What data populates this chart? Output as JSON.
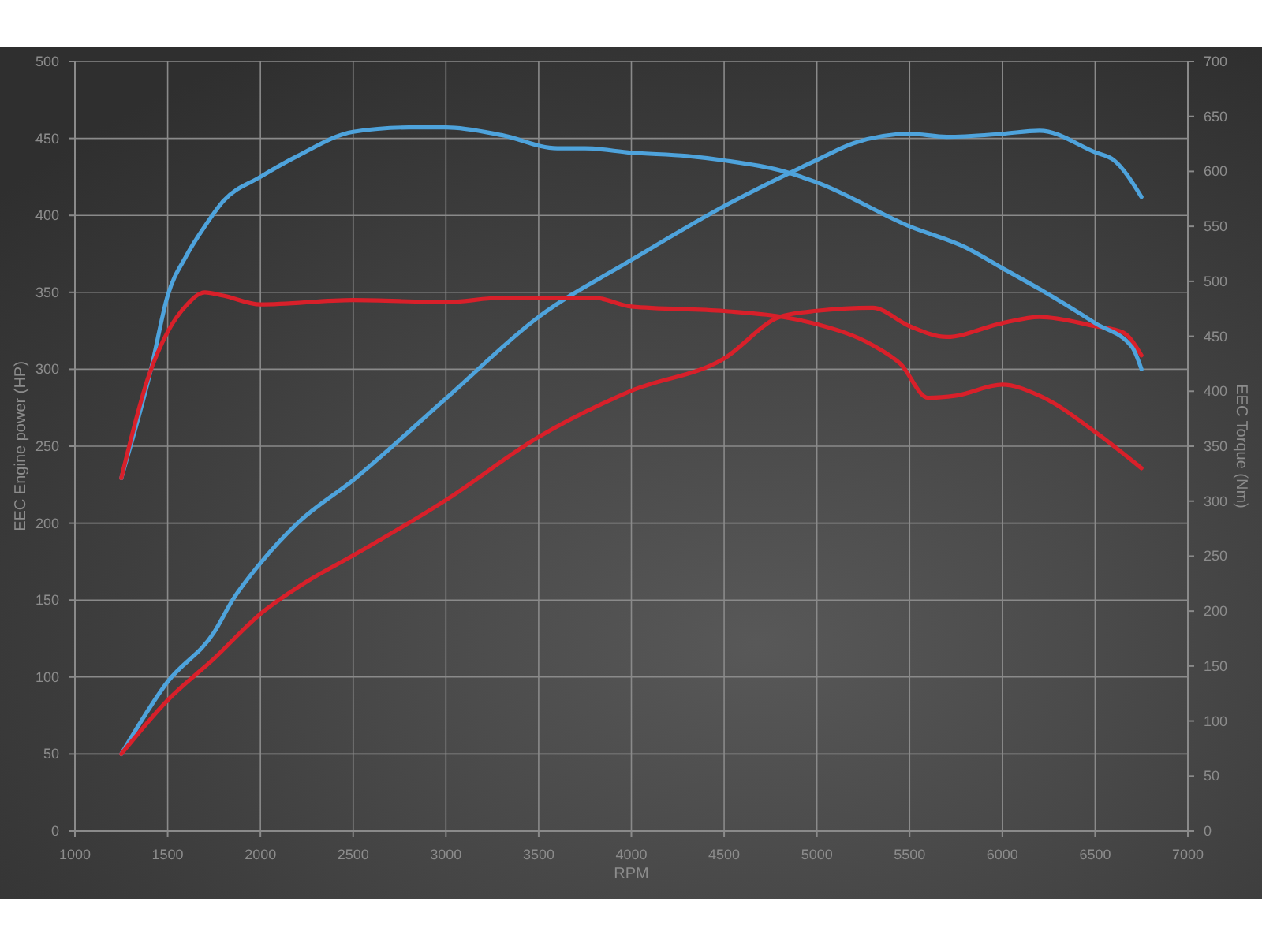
{
  "chart_data": {
    "type": "line",
    "xlabel": "RPM",
    "ylabel": "EEC Engine power (HP)",
    "y2label": "EEC Torque (Nm)",
    "xlim": [
      1000,
      7000
    ],
    "xticks": [
      1000,
      1500,
      2000,
      2500,
      3000,
      3500,
      4000,
      4500,
      5000,
      5500,
      6000,
      6500,
      7000
    ],
    "ylim": [
      0,
      500
    ],
    "yticks": [
      0,
      50,
      100,
      150,
      200,
      250,
      300,
      350,
      400,
      450,
      500
    ],
    "y2lim": [
      0,
      700
    ],
    "y2ticks": [
      0,
      50,
      100,
      150,
      200,
      250,
      300,
      350,
      400,
      450,
      500,
      550,
      600,
      650,
      700
    ],
    "grid": true,
    "line_style": "solid",
    "series": [
      {
        "color": "#4ea3dc",
        "x": [
          1250,
          1500,
          1750,
          1850,
          2000,
          2200,
          2500,
          3000,
          3500,
          4000,
          4500,
          5000,
          5200,
          5500,
          5700,
          6000,
          6200,
          6500,
          6600,
          6750
        ],
        "values": [
          50,
          97,
          129,
          150,
          174,
          200,
          228,
          281,
          334,
          371,
          406,
          436,
          447,
          453,
          451,
          453,
          455,
          441,
          436,
          412
        ]
      },
      {
        "color": "#d8202a",
        "x": [
          1250,
          1500,
          1750,
          2000,
          2250,
          2500,
          3000,
          3500,
          4000,
          4500,
          4800,
          5000,
          5300,
          5500,
          5700,
          6000,
          6200,
          6500,
          6650,
          6750
        ],
        "values": [
          50,
          85,
          112,
          141,
          162,
          179,
          215,
          256,
          286,
          307,
          334,
          338,
          340,
          328,
          321,
          330,
          334,
          328,
          324,
          309
        ]
      },
      {
        "color": "#4ea3dc",
        "axis": "y2",
        "x": [
          1250,
          1410,
          1500,
          1600,
          1700,
          1800,
          2000,
          2200,
          2500,
          2800,
          3000,
          3300,
          3600,
          3750,
          4000,
          4300,
          4500,
          4800,
          5000,
          5500,
          5800,
          6000,
          6200,
          6500,
          6700,
          6750
        ],
        "values": [
          321,
          420,
          487,
          523,
          550,
          573,
          595,
          614,
          636,
          640,
          640,
          633,
          621,
          621,
          617,
          614,
          610,
          601,
          590,
          550,
          531,
          512,
          493,
          462,
          440,
          420
        ]
      },
      {
        "color": "#d8202a",
        "axis": "y2",
        "x": [
          1250,
          1400,
          1500,
          1600,
          1700,
          1800,
          2000,
          2500,
          3000,
          3300,
          3800,
          4000,
          4500,
          4800,
          5000,
          5300,
          5450,
          5600,
          5750,
          6000,
          6200,
          6500,
          6750
        ],
        "values": [
          321,
          415,
          454,
          478,
          490,
          487,
          479,
          483,
          481,
          485,
          485,
          477,
          473,
          468,
          461,
          442,
          425,
          394,
          396,
          406,
          396,
          363,
          330
        ]
      }
    ]
  }
}
